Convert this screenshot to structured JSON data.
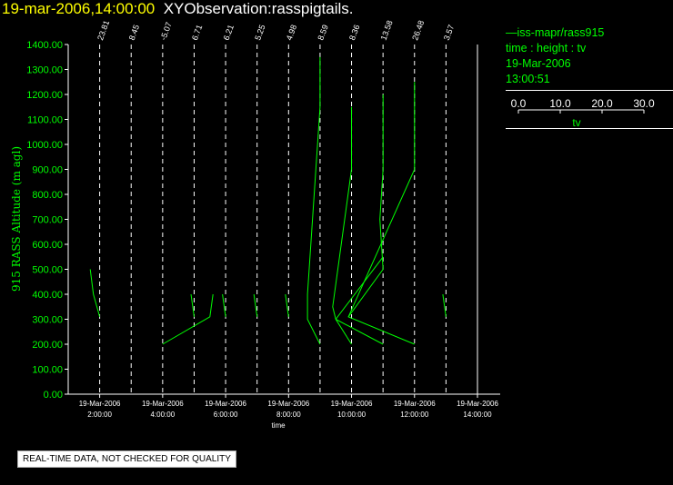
{
  "header": {
    "timestamp": "19-mar-2006,14:00:00",
    "title": "XYObservation:rasspigtails."
  },
  "legend": {
    "series_label": "iss-mapr/rass915",
    "line1": "time : height : tv",
    "line2": "19-Mar-2006",
    "line3": "13:00:51",
    "scale_ticks": [
      "0.0",
      "10.0",
      "20.0",
      "30.0"
    ],
    "scale_range": [
      0,
      30
    ],
    "scale_label": "tv"
  },
  "footer": {
    "quality_note": "REAL-TIME DATA, NOT CHECKED FOR QUALITY"
  },
  "colors": {
    "trace": "#00ff00",
    "axis": "#ffffff",
    "title": "#ffff00",
    "background": "#000000"
  },
  "chart_data": {
    "type": "line",
    "xlabel": "time",
    "ylabel": "915 RASS Altitude (m agl)",
    "xlim": [
      "2006-03-19T01:00:00",
      "2006-03-19T14:00:00"
    ],
    "ylim": [
      0,
      1400
    ],
    "grid": false,
    "x_ticks": [
      {
        "t": "2006-03-19T02:00:00",
        "date": "19-Mar-2006",
        "time": "2:00:00"
      },
      {
        "t": "2006-03-19T04:00:00",
        "date": "19-Mar-2006",
        "time": "4:00:00"
      },
      {
        "t": "2006-03-19T06:00:00",
        "date": "19-Mar-2006",
        "time": "6:00:00"
      },
      {
        "t": "2006-03-19T08:00:00",
        "date": "19-Mar-2006",
        "time": "8:00:00"
      },
      {
        "t": "2006-03-19T10:00:00",
        "date": "19-Mar-2006",
        "time": "10:00:00"
      },
      {
        "t": "2006-03-19T12:00:00",
        "date": "19-Mar-2006",
        "time": "12:00:00"
      },
      {
        "t": "2006-03-19T14:00:00",
        "date": "19-Mar-2006",
        "time": "14:00:00"
      }
    ],
    "y_ticks": [
      "0.00",
      "100.00",
      "200.00",
      "300.00",
      "400.00",
      "500.00",
      "600.00",
      "700.00",
      "800.00",
      "900.00",
      "1000.00",
      "1100.00",
      "1200.00",
      "1300.00",
      "1400.00"
    ],
    "profiles": [
      {
        "time": "2006-03-19T02:00:00",
        "label": "23.81"
      },
      {
        "time": "2006-03-19T03:00:00",
        "label": "8.45"
      },
      {
        "time": "2006-03-19T04:00:00",
        "label": "-5.07"
      },
      {
        "time": "2006-03-19T05:00:00",
        "label": "6.71"
      },
      {
        "time": "2006-03-19T06:00:00",
        "label": "6.21"
      },
      {
        "time": "2006-03-19T07:00:00",
        "label": "5.25"
      },
      {
        "time": "2006-03-19T08:00:00",
        "label": "4.98"
      },
      {
        "time": "2006-03-19T09:00:00",
        "label": "8.59"
      },
      {
        "time": "2006-03-19T10:00:00",
        "label": "8.36"
      },
      {
        "time": "2006-03-19T11:00:00",
        "label": "13.58"
      },
      {
        "time": "2006-03-19T12:00:00",
        "label": "26.48"
      },
      {
        "time": "2006-03-19T13:00:00",
        "label": "3.57"
      }
    ],
    "traces": [
      {
        "points": [
          [
            "2006-03-19T01:42:00",
            500
          ],
          [
            "2006-03-19T01:48:00",
            400
          ],
          [
            "2006-03-19T02:00:00",
            310
          ]
        ]
      },
      {
        "points": [
          [
            "2006-03-19T04:00:00",
            200
          ],
          [
            "2006-03-19T05:30:00",
            310
          ],
          [
            "2006-03-19T05:36:00",
            400
          ]
        ]
      },
      {
        "points": [
          [
            "2006-03-19T04:54:00",
            400
          ],
          [
            "2006-03-19T05:00:00",
            310
          ]
        ]
      },
      {
        "points": [
          [
            "2006-03-19T05:54:00",
            400
          ],
          [
            "2006-03-19T06:00:00",
            310
          ]
        ]
      },
      {
        "points": [
          [
            "2006-03-19T06:54:00",
            400
          ],
          [
            "2006-03-19T07:00:00",
            310
          ]
        ]
      },
      {
        "points": [
          [
            "2006-03-19T07:54:00",
            400
          ],
          [
            "2006-03-19T08:00:00",
            310
          ]
        ]
      },
      {
        "points": [
          [
            "2006-03-19T09:00:00",
            1350
          ],
          [
            "2006-03-19T09:00:00",
            1150
          ],
          [
            "2006-03-19T08:36:00",
            400
          ],
          [
            "2006-03-19T08:36:00",
            300
          ],
          [
            "2006-03-19T09:00:00",
            200
          ]
        ]
      },
      {
        "points": [
          [
            "2006-03-19T10:00:00",
            1150
          ],
          [
            "2006-03-19T10:00:00",
            900
          ],
          [
            "2006-03-19T09:24:00",
            350
          ],
          [
            "2006-03-19T09:30:00",
            300
          ],
          [
            "2006-03-19T10:00:00",
            200
          ]
        ]
      },
      {
        "points": [
          [
            "2006-03-19T09:30:00",
            300
          ],
          [
            "2006-03-19T11:00:00",
            200
          ]
        ]
      },
      {
        "points": [
          [
            "2006-03-19T09:30:00",
            300
          ],
          [
            "2006-03-19T11:00:00",
            550
          ]
        ]
      },
      {
        "points": [
          [
            "2006-03-19T11:00:00",
            1200
          ],
          [
            "2006-03-19T11:00:00",
            900
          ],
          [
            "2006-03-19T10:54:00",
            700
          ],
          [
            "2006-03-19T11:00:00",
            500
          ],
          [
            "2006-03-19T09:54:00",
            310
          ]
        ]
      },
      {
        "points": [
          [
            "2006-03-19T12:00:00",
            1250
          ],
          [
            "2006-03-19T12:00:00",
            900
          ],
          [
            "2006-03-19T09:54:00",
            310
          ],
          [
            "2006-03-19T12:00:00",
            200
          ]
        ]
      },
      {
        "points": [
          [
            "2006-03-19T12:54:00",
            400
          ],
          [
            "2006-03-19T13:00:00",
            310
          ]
        ]
      }
    ]
  }
}
